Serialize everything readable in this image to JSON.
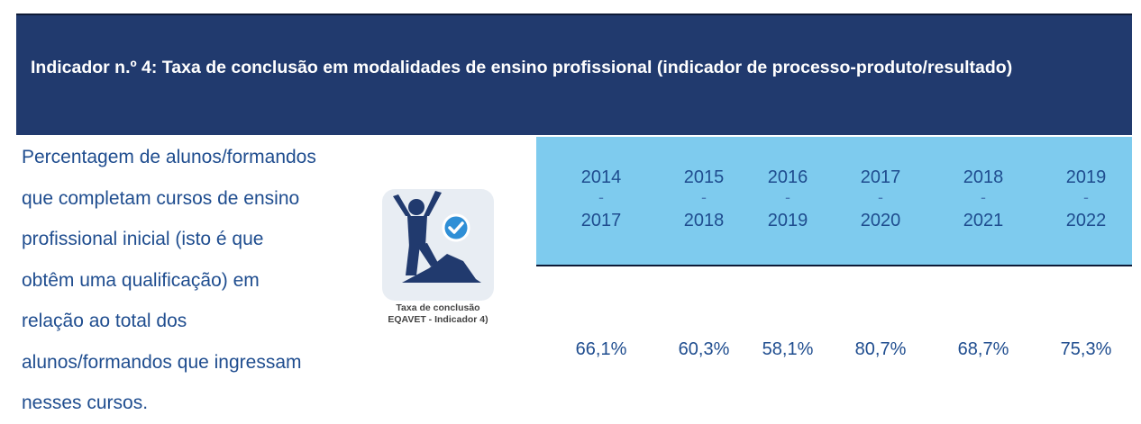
{
  "header": {
    "title": "Indicador n.º 4: Taxa de conclusão em modalidades de ensino profissional (indicador de processo-produto/resultado)"
  },
  "description": {
    "lines": [
      "Percentagem de alunos/formandos",
      "que completam cursos de ensino",
      "profissional inicial (isto é que",
      "obtêm uma qualificação) em",
      "relação ao total dos",
      "alunos/formandos que ingressam",
      "nesses cursos."
    ]
  },
  "icon": {
    "name": "person-climbing-checkmark-icon",
    "caption_line1": "Taxa de conclusão",
    "caption_line2": "EQAVET - Indicador 4)",
    "colors": {
      "figure": "#213a6e",
      "check": "#2f8fd6"
    }
  },
  "periods": [
    {
      "start": "2014",
      "sep": "-",
      "end": "2017",
      "value": "66,1%"
    },
    {
      "start": "2015",
      "sep": "-",
      "end": "2018",
      "value": "60,3%"
    },
    {
      "start": "2016",
      "sep": "-",
      "end": "2019",
      "value": "58,1%"
    },
    {
      "start": "2017",
      "sep": "-",
      "end": "2020",
      "value": "80,7%"
    },
    {
      "start": "2018",
      "sep": "-",
      "end": "2021",
      "value": "68,7%"
    },
    {
      "start": "2019",
      "sep": "-",
      "end": "2022",
      "value": "75,3%"
    }
  ],
  "colors": {
    "header_bg": "#213a6e",
    "years_bg": "#7ecbee",
    "text_blue": "#1f4d8f"
  }
}
